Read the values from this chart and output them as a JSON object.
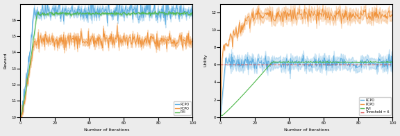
{
  "left_plot": {
    "xlabel": "Number of Iterations",
    "ylabel": "Reward",
    "xlim": [
      0,
      100
    ],
    "ylim": [
      10,
      17
    ],
    "yticks": [
      10,
      11,
      12,
      13,
      14,
      15,
      16
    ],
    "rcpo_color": "#5aace0",
    "pcpo_color": "#f0923a",
    "pvi_color": "#4db84a",
    "rcpo_plateau": 16.5,
    "pcpo_plateau": 14.75,
    "pvi_plateau": 16.4,
    "rise_end": 8
  },
  "right_plot": {
    "xlabel": "Number of Iterations",
    "ylabel": "Utility",
    "xlim": [
      0,
      100
    ],
    "ylim": [
      0,
      13
    ],
    "yticks": [
      0,
      2,
      4,
      6,
      8,
      10,
      12
    ],
    "rcpo_color": "#5aace0",
    "pcpo_color": "#f0923a",
    "pvi_color": "#4db84a",
    "threshold_color": "#d94040",
    "threshold_value": 6,
    "rcpo_plateau": 6.2,
    "pcpo_plateau": 11.7,
    "pvi_plateau": 6.3,
    "rise_end_pcpo": 20,
    "rise_end_pvi": 30
  },
  "legend_labels": [
    "RCPO",
    "PCPO",
    "PVI"
  ],
  "legend_label_threshold": "Threshold = 6",
  "fig_bg": "#ececec",
  "axes_bg": "#ffffff"
}
